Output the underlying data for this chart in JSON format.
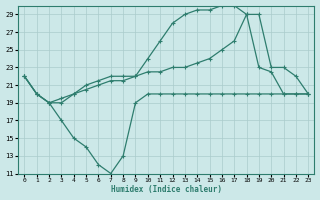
{
  "line1_y": [
    22,
    20,
    19,
    19,
    20,
    21,
    21.5,
    22,
    22,
    22,
    24,
    26,
    28,
    29,
    29.5,
    29.5,
    30,
    30,
    29,
    23,
    22.5,
    20,
    20,
    20
  ],
  "line2_y": [
    22,
    20,
    19,
    19.5,
    20,
    20.5,
    21,
    21.5,
    21.5,
    22,
    22.5,
    22.5,
    23,
    23,
    23.5,
    24,
    25,
    26,
    29,
    29,
    23,
    23,
    22,
    20
  ],
  "line3_y": [
    22,
    20,
    19,
    17,
    15,
    14,
    12,
    11,
    13,
    19,
    20,
    20,
    20,
    20,
    20,
    20,
    20,
    20,
    20,
    20,
    20,
    20,
    20,
    20
  ],
  "x": [
    0,
    1,
    2,
    3,
    4,
    5,
    6,
    7,
    8,
    9,
    10,
    11,
    12,
    13,
    14,
    15,
    16,
    17,
    18,
    19,
    20,
    21,
    22,
    23
  ],
  "color": "#2e7d6e",
  "bg_color": "#cce8e8",
  "grid_color": "#aacccc",
  "xlabel": "Humidex (Indice chaleur)",
  "xlim_min": -0.5,
  "xlim_max": 23.5,
  "ylim_min": 11,
  "ylim_max": 30,
  "yticks": [
    11,
    13,
    15,
    17,
    19,
    21,
    23,
    25,
    27,
    29
  ],
  "xticks": [
    0,
    1,
    2,
    3,
    4,
    5,
    6,
    7,
    8,
    9,
    10,
    11,
    12,
    13,
    14,
    15,
    16,
    17,
    18,
    19,
    20,
    21,
    22,
    23
  ]
}
